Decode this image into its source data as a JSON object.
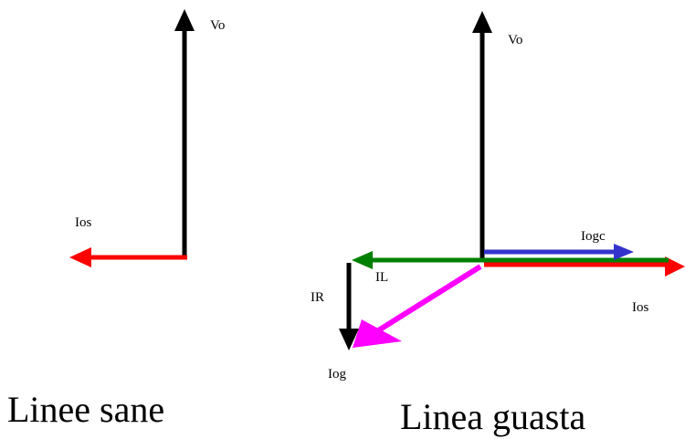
{
  "left_diagram": {
    "vo_label": "Vo",
    "ios_label": "Ios",
    "caption": "Linee sane"
  },
  "right_diagram": {
    "vo_label": "Vo",
    "iogc_label": "Iogc",
    "il_label": "IL",
    "ios_label": "Ios",
    "ir_label": "IR",
    "iog_label": "Iog",
    "caption": "Linea guasta"
  },
  "colors": {
    "vo": "#000000",
    "ios": "#ff0000",
    "iogc": "#3333cc",
    "il": "#008000",
    "ir": "#000000",
    "iog": "#ff00ff"
  }
}
